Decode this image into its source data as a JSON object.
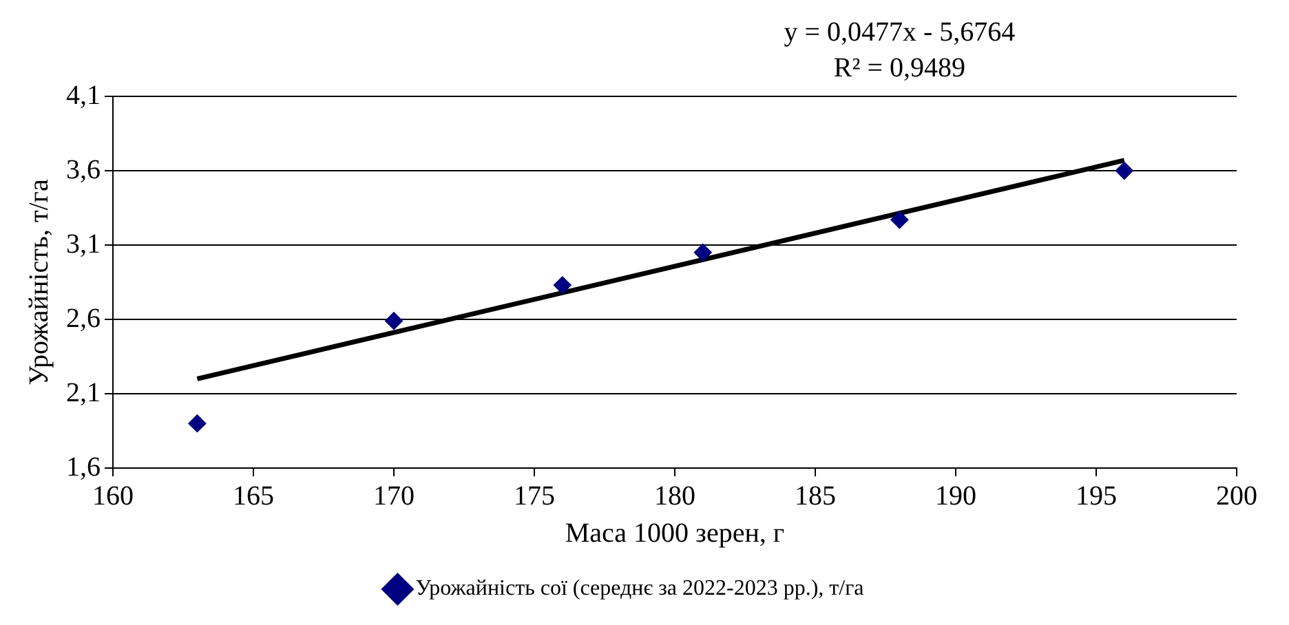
{
  "chart_data": {
    "type": "scatter",
    "xlabel": "Маса 1000 зерен, г",
    "ylabel": "Урожайність, т/га",
    "annotations": [
      "y = 0,0477x - 5,6764",
      "R² = 0,9489"
    ],
    "x": [
      163,
      170,
      176,
      181,
      188,
      196
    ],
    "series": [
      {
        "name": "Урожайність сої (середнє за 2022-2023 рр.), т/га",
        "color": "#000080",
        "values": [
          1.9,
          2.59,
          2.83,
          3.05,
          3.27,
          3.6
        ],
        "marker": "diamond"
      },
      {
        "type": "line",
        "color": "#000000",
        "x": [
          163,
          196
        ],
        "values": [
          2.2,
          3.67
        ],
        "marker": "none"
      }
    ],
    "xlim": [
      160,
      200
    ],
    "xticks": [
      160,
      165,
      170,
      175,
      180,
      185,
      190,
      195,
      200
    ],
    "ylim": [
      1.6,
      4.1
    ],
    "yticks": [
      {
        "value": 1.6,
        "label": "1,6"
      },
      {
        "value": 2.1,
        "label": "2,1"
      },
      {
        "value": 2.6,
        "label": "2,6"
      },
      {
        "value": 3.1,
        "label": "3,1"
      },
      {
        "value": 3.6,
        "label": "3,6"
      },
      {
        "value": 4.1,
        "label": "4,1"
      }
    ],
    "grid": "y",
    "legend": "bottom"
  }
}
